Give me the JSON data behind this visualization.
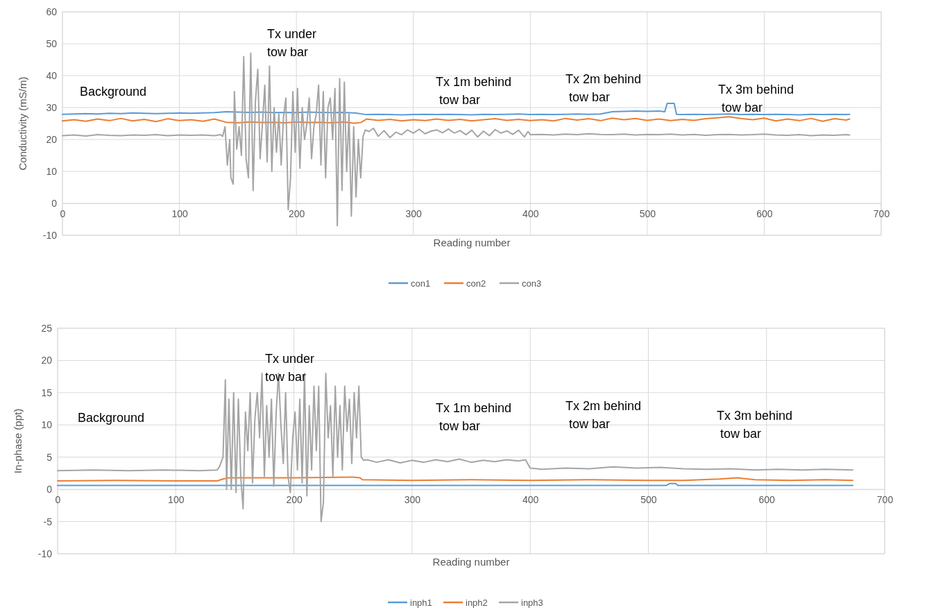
{
  "chart_data": [
    {
      "type": "line",
      "xlabel": "Reading number",
      "ylabel": "Conductivity (mS/m)",
      "xlim": [
        0,
        700
      ],
      "xticks": [
        0,
        100,
        200,
        300,
        400,
        500,
        600,
        700
      ],
      "ylim": [
        -10,
        60
      ],
      "yticks": [
        -10,
        0,
        10,
        20,
        30,
        40,
        50,
        60
      ],
      "grid": true,
      "legend": "bottom",
      "marker": "none",
      "line_style": "solid",
      "annotations": [
        "Background",
        "Tx under\ntow bar",
        "Tx 1m behind\n tow bar",
        "Tx 2m behind\n tow bar",
        "Tx 3m behind\n tow bar"
      ],
      "series": [
        {
          "name": "con1",
          "color": "#5b9bd5",
          "x": [
            0,
            10,
            20,
            30,
            40,
            50,
            60,
            70,
            80,
            90,
            100,
            110,
            120,
            130,
            140,
            150,
            160,
            170,
            180,
            190,
            200,
            210,
            220,
            230,
            240,
            250,
            260,
            270,
            280,
            290,
            300,
            310,
            320,
            330,
            340,
            350,
            360,
            370,
            380,
            390,
            400,
            410,
            420,
            430,
            440,
            450,
            460,
            470,
            480,
            490,
            500,
            510,
            515,
            517,
            523,
            525,
            530,
            540,
            550,
            560,
            570,
            580,
            590,
            600,
            610,
            620,
            630,
            640,
            650,
            660,
            670,
            673
          ],
          "values": [
            27.9,
            28,
            28.1,
            28,
            28.2,
            28.1,
            28.3,
            28.2,
            28.1,
            28.2,
            28.3,
            28.2,
            28.3,
            28.4,
            28.7,
            28.6,
            28.5,
            28.6,
            28.4,
            28.5,
            28.4,
            28.6,
            28.5,
            28.4,
            28.5,
            28.3,
            27.8,
            27.9,
            27.8,
            27.7,
            27.8,
            27.9,
            27.8,
            27.9,
            27.8,
            27.7,
            27.9,
            27.8,
            27.9,
            28,
            27.8,
            27.9,
            27.8,
            27.9,
            28,
            27.9,
            28,
            28.7,
            28.8,
            28.9,
            28.8,
            28.9,
            28.7,
            31.3,
            31.3,
            27.9,
            27.8,
            27.9,
            27.8,
            27.9,
            28,
            27.8,
            27.9,
            27.8,
            27.9,
            27.8,
            27.7,
            27.9,
            27.8,
            27.9,
            27.8,
            27.9
          ]
        },
        {
          "name": "con2",
          "color": "#ed7d31",
          "x": [
            0,
            10,
            20,
            30,
            40,
            50,
            60,
            70,
            80,
            90,
            100,
            110,
            120,
            130,
            140,
            150,
            160,
            170,
            180,
            190,
            200,
            210,
            220,
            230,
            240,
            250,
            255,
            260,
            270,
            280,
            290,
            300,
            310,
            320,
            330,
            340,
            350,
            360,
            370,
            380,
            390,
            400,
            410,
            420,
            430,
            440,
            450,
            460,
            470,
            480,
            490,
            500,
            510,
            520,
            530,
            540,
            550,
            560,
            570,
            580,
            590,
            600,
            610,
            620,
            630,
            640,
            650,
            660,
            670,
            673
          ],
          "values": [
            25.8,
            26.2,
            25.7,
            26.4,
            25.9,
            26.6,
            25.8,
            26.3,
            25.6,
            26.5,
            25.9,
            26.2,
            25.7,
            26.4,
            25.4,
            25.2,
            25.5,
            25.3,
            25.4,
            25.2,
            25.5,
            25.3,
            25.4,
            25.2,
            25.5,
            25.1,
            25.3,
            26.4,
            26,
            26.3,
            25.8,
            26.2,
            25.9,
            26.4,
            26,
            26.3,
            25.8,
            26.2,
            26.5,
            26,
            26.3,
            25.9,
            26.2,
            25.8,
            26.6,
            26.1,
            26.5,
            25.9,
            26.7,
            26.2,
            26.6,
            26,
            26.4,
            25.9,
            26.3,
            26,
            26.5,
            26.8,
            27.1,
            26.6,
            26.2,
            26.7,
            25.8,
            26.4,
            25.9,
            26.6,
            25.7,
            26.5,
            26.1,
            26.4
          ]
        },
        {
          "name": "con3",
          "color": "#a5a5a5",
          "x": [
            0,
            10,
            20,
            30,
            40,
            50,
            60,
            70,
            80,
            90,
            100,
            110,
            120,
            130,
            135,
            137,
            139,
            141,
            143,
            144,
            146,
            147,
            149,
            151,
            153,
            155,
            157,
            159,
            161,
            163,
            165,
            167,
            169,
            171,
            173,
            175,
            177,
            179,
            181,
            183,
            185,
            187,
            189,
            191,
            193,
            195,
            197,
            199,
            201,
            203,
            205,
            207,
            209,
            211,
            213,
            215,
            217,
            219,
            221,
            223,
            225,
            227,
            229,
            231,
            233,
            235,
            237,
            239,
            241,
            243,
            245,
            247,
            249,
            251,
            253,
            255,
            257,
            259,
            262,
            266,
            270,
            275,
            280,
            285,
            290,
            295,
            300,
            305,
            310,
            315,
            320,
            325,
            330,
            335,
            340,
            345,
            350,
            355,
            360,
            365,
            370,
            375,
            380,
            385,
            390,
            395,
            398,
            400,
            410,
            420,
            430,
            440,
            450,
            460,
            470,
            480,
            490,
            500,
            510,
            520,
            530,
            540,
            550,
            560,
            570,
            580,
            590,
            600,
            610,
            620,
            630,
            640,
            650,
            660,
            670,
            673
          ],
          "values": [
            21.2,
            21.4,
            21.1,
            21.5,
            21.3,
            21.2,
            21.4,
            21.3,
            21.5,
            21.2,
            21.4,
            21.3,
            21.4,
            21.2,
            21.5,
            21,
            24,
            12,
            20,
            8,
            6,
            35,
            17,
            24,
            15,
            46,
            14,
            8,
            47,
            4,
            32,
            42,
            14,
            25,
            37,
            13,
            43,
            10,
            30,
            16,
            28,
            12,
            27,
            33,
            -2,
            8,
            35,
            16,
            36,
            11,
            30,
            20,
            25,
            33,
            14,
            24,
            28,
            37,
            12,
            35,
            8,
            30,
            33,
            20,
            36,
            -7,
            39,
            4,
            38,
            10,
            28,
            -4,
            24,
            2,
            20,
            8,
            21,
            23,
            22.5,
            23.5,
            21,
            22.8,
            20.6,
            22.3,
            21.5,
            23,
            22,
            23.2,
            21.8,
            22.6,
            23,
            22.1,
            23.3,
            22,
            22.8,
            21.5,
            22.9,
            20.8,
            22.6,
            21.2,
            23.1,
            22,
            22.7,
            21.6,
            22.9,
            20.8,
            22.5,
            21.5,
            21.6,
            21.4,
            21.7,
            21.5,
            21.8,
            21.6,
            21.5,
            21.7,
            21.4,
            21.6,
            21.5,
            21.7,
            21.4,
            21.6,
            21.3,
            21.5,
            21.6,
            21.4,
            21.5,
            21.7,
            21.4,
            21.3,
            21.5,
            21.2,
            21.4,
            21.3,
            21.5,
            21.4
          ]
        }
      ]
    },
    {
      "type": "line",
      "xlabel": "Reading number",
      "ylabel": "In-phase (ppt)",
      "xlim": [
        0,
        700
      ],
      "xticks": [
        0,
        100,
        200,
        300,
        400,
        500,
        600,
        700
      ],
      "ylim": [
        -10,
        25
      ],
      "yticks": [
        -10,
        -5,
        0,
        5,
        10,
        15,
        20,
        25
      ],
      "grid": true,
      "legend": "bottom",
      "marker": "none",
      "line_style": "solid",
      "annotations": [
        "Background",
        "Tx under\ntow bar",
        "Tx 1m behind\n tow bar",
        "Tx 2m behind\n tow bar",
        "Tx 3m behind\n tow bar"
      ],
      "series": [
        {
          "name": "inph1",
          "color": "#5b9bd5",
          "x": [
            0,
            100,
            200,
            300,
            400,
            500,
            515,
            518,
            523,
            525,
            600,
            673
          ],
          "values": [
            0.6,
            0.6,
            0.6,
            0.6,
            0.6,
            0.6,
            0.6,
            0.9,
            0.9,
            0.6,
            0.6,
            0.6
          ]
        },
        {
          "name": "inph2",
          "color": "#ed7d31",
          "x": [
            0,
            50,
            100,
            135,
            140,
            145,
            200,
            250,
            256,
            258,
            300,
            350,
            400,
            450,
            500,
            530,
            560,
            575,
            590,
            620,
            650,
            673
          ],
          "values": [
            1.3,
            1.4,
            1.3,
            1.3,
            1.6,
            1.8,
            1.8,
            1.9,
            1.8,
            1.5,
            1.4,
            1.5,
            1.4,
            1.5,
            1.4,
            1.4,
            1.6,
            1.8,
            1.5,
            1.4,
            1.5,
            1.4
          ]
        },
        {
          "name": "inph3",
          "color": "#a5a5a5",
          "x": [
            0,
            30,
            60,
            90,
            120,
            135,
            137,
            140,
            142,
            143,
            145,
            147,
            149,
            151,
            153,
            155,
            157,
            159,
            161,
            163,
            165,
            167,
            169,
            171,
            173,
            175,
            177,
            179,
            181,
            183,
            185,
            187,
            189,
            191,
            193,
            195,
            197,
            199,
            201,
            203,
            205,
            207,
            209,
            211,
            213,
            215,
            217,
            219,
            221,
            223,
            225,
            227,
            229,
            231,
            233,
            235,
            237,
            239,
            241,
            243,
            245,
            247,
            249,
            251,
            253,
            255,
            257,
            259,
            262,
            270,
            280,
            290,
            300,
            310,
            320,
            330,
            340,
            350,
            360,
            370,
            380,
            390,
            396,
            400,
            410,
            430,
            450,
            470,
            490,
            510,
            530,
            550,
            570,
            590,
            610,
            630,
            650,
            673
          ],
          "values": [
            2.9,
            3,
            2.9,
            3,
            2.9,
            3,
            3.5,
            5,
            17,
            0,
            14,
            0,
            15,
            -0.5,
            14,
            2,
            -3,
            12,
            6,
            15,
            1,
            11,
            15,
            8,
            18,
            2,
            13,
            5,
            14,
            0.5,
            12,
            18,
            10,
            4,
            15,
            2,
            -0.5,
            8,
            12,
            3,
            14,
            1,
            18,
            -1,
            13,
            3,
            16,
            6,
            16,
            -5,
            -2,
            18,
            8,
            13,
            2,
            16,
            5,
            13,
            3,
            16,
            9,
            14,
            4,
            15,
            8,
            16,
            5,
            4.5,
            4.6,
            4.2,
            4.6,
            4.1,
            4.5,
            4.2,
            4.6,
            4.3,
            4.7,
            4.2,
            4.5,
            4.3,
            4.6,
            4.4,
            4.6,
            3.3,
            3.1,
            3.3,
            3.2,
            3.5,
            3.3,
            3.4,
            3.2,
            3.1,
            3.2,
            3,
            3.1,
            3,
            3.1,
            3
          ]
        }
      ]
    }
  ]
}
